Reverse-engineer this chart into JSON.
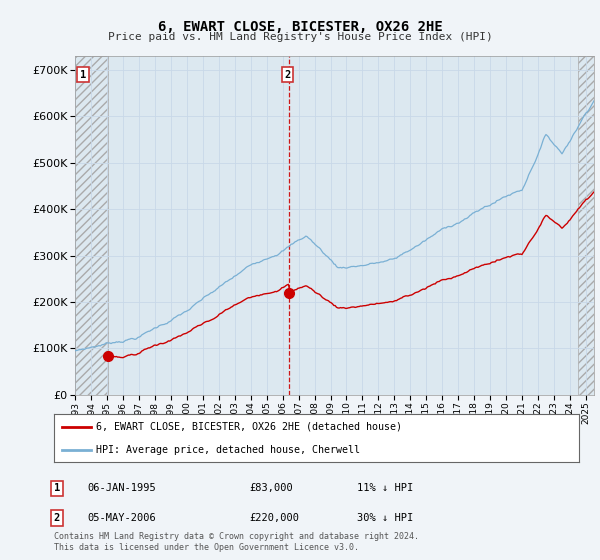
{
  "title": "6, EWART CLOSE, BICESTER, OX26 2HE",
  "subtitle": "Price paid vs. HM Land Registry's House Price Index (HPI)",
  "legend_line1": "6, EWART CLOSE, BICESTER, OX26 2HE (detached house)",
  "legend_line2": "HPI: Average price, detached house, Cherwell",
  "annotation1": {
    "label": "1",
    "date_label": "06-JAN-1995",
    "price": "£83,000",
    "hpi": "11% ↓ HPI",
    "x_year": 1995.04
  },
  "annotation2": {
    "label": "2",
    "date_label": "05-MAY-2006",
    "price": "£220,000",
    "hpi": "30% ↓ HPI",
    "x_year": 2006.37
  },
  "footer": "Contains HM Land Registry data © Crown copyright and database right 2024.\nThis data is licensed under the Open Government Licence v3.0.",
  "hatch_region_start": 1993.0,
  "hatch_region_end": 1995.04,
  "hatch_region2_start": 2024.5,
  "hatch_region2_end": 2025.5,
  "dashed_line_x": 2006.37,
  "red_line_color": "#cc0000",
  "blue_line_color": "#7ab0d4",
  "grid_color": "#c8d8e8",
  "background_color": "#f0f4f8",
  "plot_bg_color": "#dce8f0",
  "ylim": [
    0,
    730000
  ],
  "xlim_start": 1993.0,
  "xlim_end": 2025.5,
  "yticks": [
    0,
    100000,
    200000,
    300000,
    400000,
    500000,
    600000,
    700000
  ],
  "xticks": [
    1993,
    1994,
    1995,
    1996,
    1997,
    1998,
    1999,
    2000,
    2001,
    2002,
    2003,
    2004,
    2005,
    2006,
    2007,
    2008,
    2009,
    2010,
    2011,
    2012,
    2013,
    2014,
    2015,
    2016,
    2017,
    2018,
    2019,
    2020,
    2021,
    2022,
    2023,
    2024,
    2025
  ]
}
